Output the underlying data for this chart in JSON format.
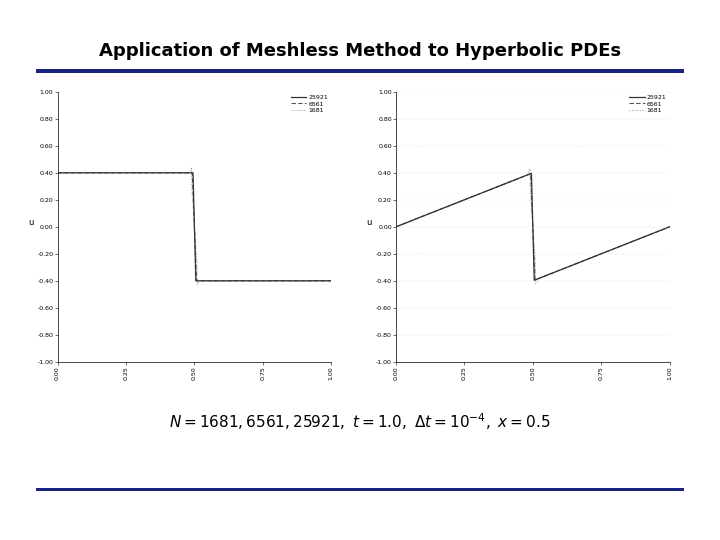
{
  "title": "Application of Meshless Method to Hyperbolic PDEs",
  "title_fontsize": 13,
  "title_fontweight": "bold",
  "title_color": "#000000",
  "header_line_color": "#1a237e",
  "footer_line_color": "#1a237e",
  "bg_color": "#ffffff",
  "legend_labels": [
    "25921",
    "6561",
    "1681"
  ],
  "yticks": [
    -1.0,
    -0.8,
    -0.6,
    -0.4,
    -0.2,
    0.0,
    0.2,
    0.4,
    0.6,
    0.8,
    1.0
  ],
  "ytick_labels_left": [
    "-1.00",
    "-0.80",
    "-0.60",
    "-0.40",
    "-0.20",
    "0.00",
    "0.20",
    "0.40",
    "0.60",
    "0.80",
    "1.00"
  ],
  "ytick_labels_right": [
    "-1.00",
    "-0.80",
    "-0.60",
    "-0.40",
    "-0.20",
    "0.00",
    "0.20",
    "0.40",
    "0.60",
    "0.80",
    "1.00"
  ],
  "xticks": [
    0.0,
    0.25,
    0.5,
    0.75,
    1.0
  ],
  "xtick_labels": [
    "0.00",
    "0.25",
    "0.50",
    "0.75",
    "1.00"
  ],
  "xlim": [
    0.0,
    1.0
  ],
  "ylim": [
    -1.0,
    1.0
  ],
  "line_solid_color": "#333333",
  "line_dash_color": "#555555",
  "line_dot_color": "#999999",
  "formula_fontsize": 11
}
